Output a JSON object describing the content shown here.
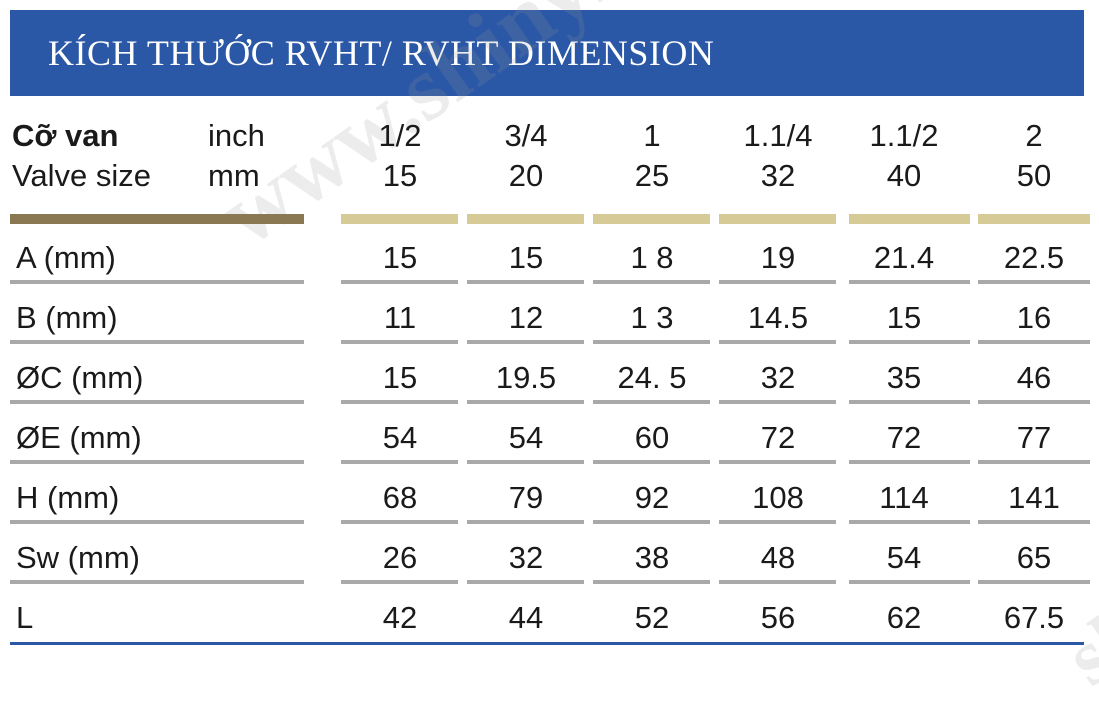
{
  "title": "KÍCH THƯỚC RVHT/ RVHT DIMENSION",
  "watermark": "www.shinyi.",
  "watermark2": "shi",
  "size_label": {
    "vi": "Cỡ van",
    "en": "Valve size"
  },
  "units": {
    "inch": "inch",
    "mm": "mm"
  },
  "columns": [
    {
      "inch": "1/2",
      "mm": "15"
    },
    {
      "inch": "3/4",
      "mm": "20"
    },
    {
      "inch": "1",
      "mm": "25"
    },
    {
      "inch": "1.1/4",
      "mm": "32"
    },
    {
      "inch": "1.1/2",
      "mm": "40"
    },
    {
      "inch": "2",
      "mm": "50"
    }
  ],
  "rows": [
    {
      "label": "A (mm)",
      "values": [
        "15",
        "15",
        "1 8",
        "19",
        "21.4",
        "22.5"
      ]
    },
    {
      "label": "B (mm)",
      "values": [
        "11",
        "12",
        "1 3",
        "14.5",
        "15",
        "16"
      ]
    },
    {
      "label": "ØC (mm)",
      "values": [
        "15",
        "19.5",
        "24. 5",
        "32",
        "35",
        "46"
      ]
    },
    {
      "label": "ØE (mm)",
      "values": [
        "54",
        "54",
        "60",
        "72",
        "72",
        "77"
      ]
    },
    {
      "label": "H (mm)",
      "values": [
        "68",
        "79",
        "92",
        "108",
        "114",
        "141"
      ]
    },
    {
      "label": "Sw (mm)",
      "values": [
        "26",
        "32",
        "38",
        "48",
        "54",
        "65"
      ]
    },
    {
      "label": "L",
      "values": [
        "42",
        "44",
        "52",
        "56",
        "62",
        "67.5"
      ]
    }
  ],
  "colors": {
    "banner": "#2b58a6",
    "header_bar": "#8a7853",
    "column_bar": "#d6cb96",
    "row_rule": "#a9a9a9"
  }
}
